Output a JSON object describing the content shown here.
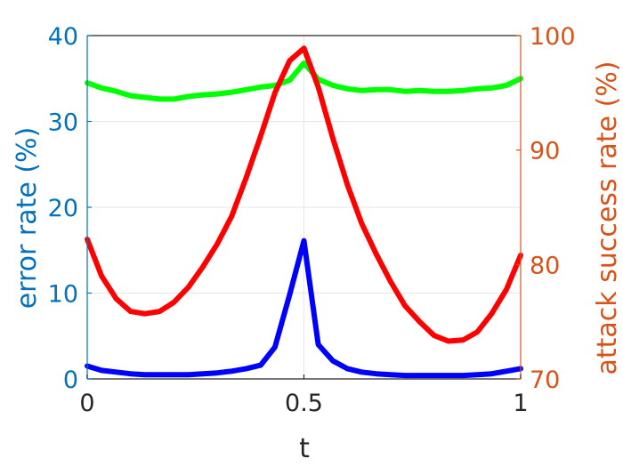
{
  "chart_data": {
    "type": "line",
    "title": "",
    "xlabel": "t",
    "ylabel_left": "error rate (%)",
    "ylabel_right": "attack success rate (%)",
    "xlim": [
      0,
      1
    ],
    "ylim_left": [
      0,
      40
    ],
    "ylim_right": [
      70,
      100
    ],
    "xticks": [
      "0",
      "0.5",
      "1"
    ],
    "xtick_values": [
      0,
      0.5,
      1
    ],
    "yticks_left": [
      "0",
      "10",
      "20",
      "30",
      "40"
    ],
    "ytick_values_left": [
      0,
      10,
      20,
      30,
      40
    ],
    "yticks_right": [
      "70",
      "80",
      "90",
      "100"
    ],
    "ytick_values_right": [
      70,
      80,
      90,
      100
    ],
    "grid": true,
    "colors": {
      "left_axis": "#0072BD",
      "right_axis": "#D95319",
      "grid": "#e6e6e6",
      "axes": "#262626"
    },
    "series": [
      {
        "axis": "left",
        "color": "#00ff00",
        "x": [
          0,
          0.033,
          0.067,
          0.1,
          0.133,
          0.167,
          0.2,
          0.233,
          0.267,
          0.3,
          0.333,
          0.367,
          0.4,
          0.433,
          0.467,
          0.5,
          0.533,
          0.567,
          0.6,
          0.633,
          0.667,
          0.7,
          0.733,
          0.767,
          0.8,
          0.833,
          0.867,
          0.9,
          0.933,
          0.967,
          1
        ],
        "values": [
          34.5,
          33.9,
          33.5,
          33.0,
          32.8,
          32.6,
          32.6,
          32.9,
          33.1,
          33.2,
          33.4,
          33.7,
          34.0,
          34.2,
          34.8,
          36.8,
          34.9,
          34.2,
          33.8,
          33.6,
          33.7,
          33.7,
          33.5,
          33.6,
          33.5,
          33.5,
          33.6,
          33.8,
          33.9,
          34.2,
          35.0
        ]
      },
      {
        "axis": "right",
        "color": "#ff0000",
        "x": [
          0,
          0.033,
          0.067,
          0.1,
          0.133,
          0.167,
          0.2,
          0.233,
          0.267,
          0.3,
          0.333,
          0.367,
          0.4,
          0.433,
          0.467,
          0.5,
          0.533,
          0.567,
          0.6,
          0.633,
          0.667,
          0.7,
          0.733,
          0.767,
          0.8,
          0.833,
          0.867,
          0.9,
          0.933,
          0.967,
          1
        ],
        "values": [
          82.2,
          79.0,
          77.0,
          75.9,
          75.7,
          75.9,
          76.7,
          78.0,
          79.8,
          81.8,
          84.2,
          87.6,
          91.2,
          95.0,
          97.8,
          98.9,
          95.5,
          91.0,
          87.0,
          83.6,
          80.9,
          78.5,
          76.4,
          75.0,
          73.8,
          73.3,
          73.4,
          74.1,
          75.7,
          77.8,
          80.8
        ]
      },
      {
        "axis": "left",
        "color": "#0000ff",
        "x": [
          0,
          0.033,
          0.067,
          0.1,
          0.133,
          0.167,
          0.2,
          0.233,
          0.267,
          0.3,
          0.333,
          0.367,
          0.4,
          0.433,
          0.467,
          0.5,
          0.533,
          0.567,
          0.6,
          0.633,
          0.667,
          0.7,
          0.733,
          0.767,
          0.8,
          0.833,
          0.867,
          0.9,
          0.933,
          0.967,
          1
        ],
        "values": [
          1.5,
          1.0,
          0.8,
          0.6,
          0.5,
          0.5,
          0.5,
          0.5,
          0.6,
          0.7,
          0.9,
          1.2,
          1.6,
          3.7,
          9.8,
          16.1,
          4.0,
          2.1,
          1.2,
          0.8,
          0.6,
          0.5,
          0.4,
          0.4,
          0.4,
          0.4,
          0.4,
          0.5,
          0.6,
          0.9,
          1.2
        ]
      }
    ]
  }
}
